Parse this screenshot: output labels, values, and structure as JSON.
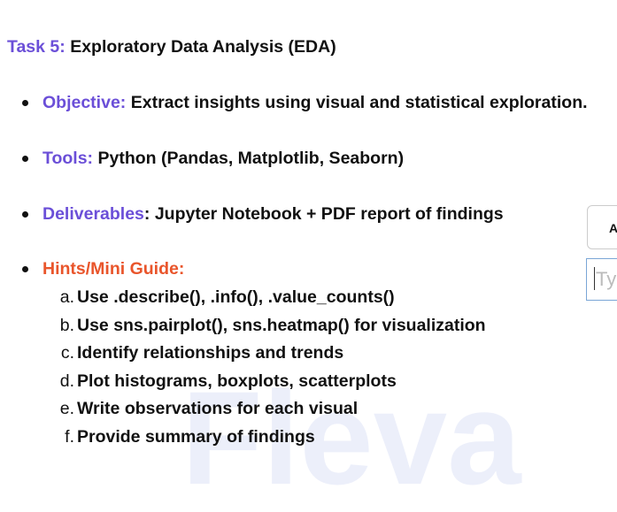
{
  "task": {
    "label": "Task 5:",
    "title": "Exploratory Data Analysis (EDA)"
  },
  "items": [
    {
      "label": "Objective:",
      "text": "Extract insights using visual and statistical exploration."
    },
    {
      "label": "Tools:",
      "text": "Python (Pandas, Matplotlib, Seaborn)"
    },
    {
      "label": "Deliverables",
      "text": ": Jupyter Notebook + PDF report of findings"
    }
  ],
  "hints": {
    "label": "Hints/Mini Guide:",
    "steps": [
      "Use .describe(), .info(), .value_counts()",
      "Use sns.pairplot(), sns.heatmap() for visualization",
      "Identify relationships and trends",
      "Plot histograms, boxplots, scatterplots",
      "Write observations for each visual",
      "Provide summary of findings"
    ]
  },
  "side": {
    "button": "A",
    "input": "Ty"
  },
  "watermark": "Fleva"
}
